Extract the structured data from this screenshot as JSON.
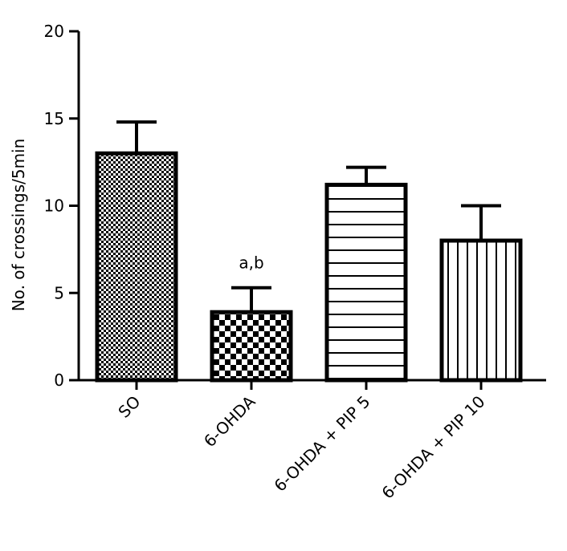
{
  "chart_data": {
    "type": "bar",
    "title": "",
    "xlabel": "",
    "ylabel": "No. of crossings/5min",
    "ylim": [
      0,
      20
    ],
    "yticks": [
      0,
      5,
      10,
      15,
      20
    ],
    "categories": [
      "SO",
      "6-OHDA",
      "6-OHDA + PIP 5",
      "6-OHDA + PIP 10"
    ],
    "values": [
      13.0,
      3.9,
      11.2,
      8.0
    ],
    "errors": [
      1.8,
      1.4,
      1.0,
      2.0
    ],
    "patterns": [
      "fine-checker",
      "checker",
      "horizontal-lines",
      "vertical-lines"
    ],
    "annotations": [
      {
        "category": "6-OHDA",
        "text": "a,b"
      }
    ],
    "grid": false,
    "legend": "none"
  }
}
